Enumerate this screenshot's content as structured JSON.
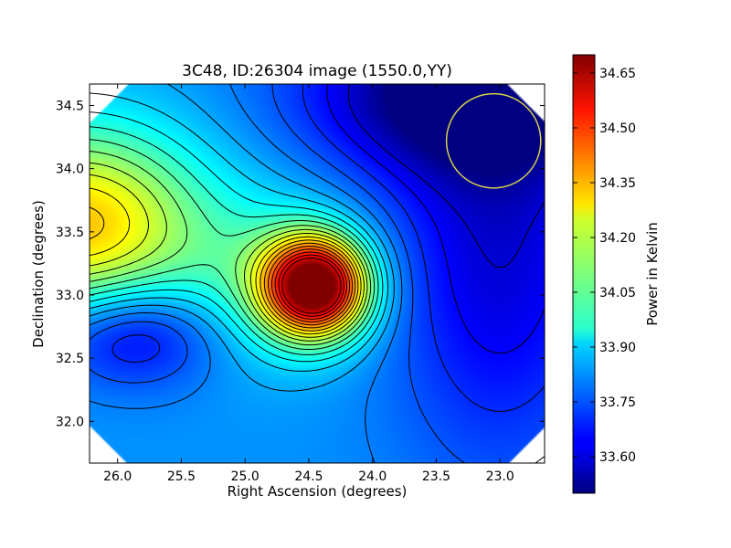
{
  "chart_data": {
    "type": "heatmap",
    "title": "3C48, ID:26304 image (1550.0,YY)",
    "xlabel": "Right Ascension (degrees)",
    "ylabel": "Declination (degrees)",
    "xlim": [
      26.22,
      22.65
    ],
    "ylim": [
      31.67,
      34.67
    ],
    "x_ticks": [
      26.0,
      25.5,
      25.0,
      24.5,
      24.0,
      23.5,
      23.0
    ],
    "x_tick_labels": [
      "26.0",
      "25.5",
      "25.0",
      "24.5",
      "24.0",
      "23.5",
      "23.0"
    ],
    "y_ticks": [
      32.0,
      32.5,
      33.0,
      33.5,
      34.0,
      34.5
    ],
    "y_tick_labels": [
      "32.0",
      "32.5",
      "33.0",
      "33.5",
      "34.0",
      "34.5"
    ],
    "colorbar": {
      "label": "Power in Kelvin",
      "colormap": "jet",
      "range": [
        33.5,
        34.7
      ],
      "ticks": [
        33.6,
        33.75,
        33.9,
        34.05,
        34.2,
        34.35,
        34.5,
        34.65
      ],
      "tick_labels": [
        "33.60",
        "33.75",
        "33.90",
        "34.05",
        "34.20",
        "34.35",
        "34.50",
        "34.65"
      ]
    },
    "base_level": 33.82,
    "components": [
      {
        "ra": 24.45,
        "dec": 33.07,
        "amplitude": 0.9,
        "sigma_ra": 0.28,
        "sigma_dec": 0.27
      },
      {
        "ra": 24.75,
        "dec": 33.1,
        "amplitude": 0.18,
        "sigma_ra": 0.5,
        "sigma_dec": 0.45
      },
      {
        "ra": 26.3,
        "dec": 33.55,
        "amplitude": 0.5,
        "sigma_ra": 0.7,
        "sigma_dec": 0.55
      },
      {
        "ra": 25.9,
        "dec": 32.7,
        "amplitude": -0.25,
        "sigma_ra": 0.5,
        "sigma_dec": 0.3
      },
      {
        "ra": 23.3,
        "dec": 34.6,
        "amplitude": -0.35,
        "sigma_ra": 0.85,
        "sigma_dec": 0.45
      },
      {
        "ra": 23.0,
        "dec": 33.4,
        "amplitude": -0.22,
        "sigma_ra": 0.6,
        "sigma_dec": 1.2
      }
    ],
    "contour_levels": [
      33.6,
      33.65,
      33.7,
      33.75,
      33.8,
      33.85,
      33.9,
      33.95,
      34.0,
      34.05,
      34.1,
      34.15,
      34.2,
      34.25,
      34.3,
      34.35,
      34.4,
      34.45,
      34.5,
      34.55,
      34.6
    ],
    "beam_circle": {
      "ra": 23.05,
      "dec": 34.22,
      "radius_deg": 0.37,
      "color": "#d9d04a"
    },
    "grid": false
  }
}
